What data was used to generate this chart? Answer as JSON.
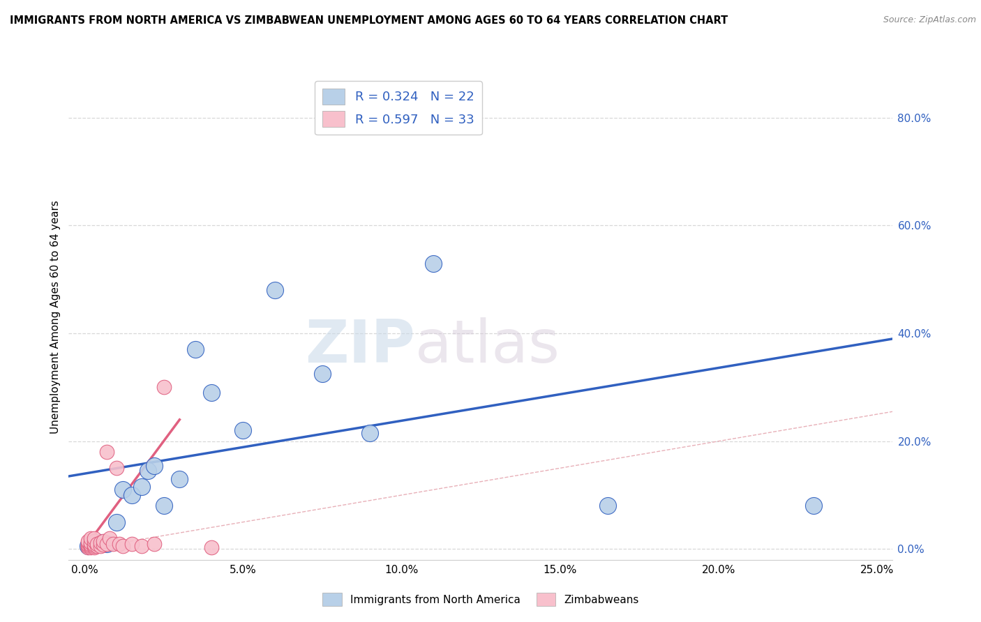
{
  "title": "IMMIGRANTS FROM NORTH AMERICA VS ZIMBABWEAN UNEMPLOYMENT AMONG AGES 60 TO 64 YEARS CORRELATION CHART",
  "source": "Source: ZipAtlas.com",
  "xlabel_ticks": [
    "0.0%",
    "5.0%",
    "10.0%",
    "15.0%",
    "20.0%",
    "25.0%"
  ],
  "xlabel_vals": [
    0.0,
    0.05,
    0.1,
    0.15,
    0.2,
    0.25
  ],
  "ylabel": "Unemployment Among Ages 60 to 64 years",
  "ylabel_ticks": [
    "80.0%",
    "60.0%",
    "40.0%",
    "20.0%",
    "0.0%"
  ],
  "ylabel_vals": [
    0.8,
    0.6,
    0.4,
    0.2,
    0.0
  ],
  "xlim": [
    -0.005,
    0.255
  ],
  "ylim": [
    -0.02,
    0.88
  ],
  "legend_label1": "Immigrants from North America",
  "legend_label2": "Zimbabweans",
  "blue_color": "#b8d0e8",
  "blue_line_color": "#3060c0",
  "pink_color": "#f8c0cc",
  "pink_line_color": "#e06080",
  "diag_color": "#d0a0a0",
  "blue_scatter_x": [
    0.001,
    0.002,
    0.003,
    0.005,
    0.007,
    0.01,
    0.012,
    0.015,
    0.018,
    0.02,
    0.022,
    0.025,
    0.03,
    0.035,
    0.04,
    0.05,
    0.06,
    0.075,
    0.09,
    0.11,
    0.165,
    0.23
  ],
  "blue_scatter_y": [
    0.005,
    0.01,
    0.008,
    0.012,
    0.01,
    0.05,
    0.11,
    0.1,
    0.115,
    0.145,
    0.155,
    0.08,
    0.13,
    0.37,
    0.29,
    0.22,
    0.48,
    0.325,
    0.215,
    0.53,
    0.08,
    0.08
  ],
  "pink_scatter_x": [
    0.001,
    0.001,
    0.001,
    0.001,
    0.001,
    0.002,
    0.002,
    0.002,
    0.002,
    0.002,
    0.003,
    0.003,
    0.003,
    0.003,
    0.003,
    0.004,
    0.004,
    0.005,
    0.005,
    0.006,
    0.006,
    0.007,
    0.007,
    0.008,
    0.009,
    0.01,
    0.011,
    0.012,
    0.015,
    0.018,
    0.022,
    0.025,
    0.04
  ],
  "pink_scatter_y": [
    0.003,
    0.005,
    0.008,
    0.012,
    0.015,
    0.003,
    0.005,
    0.008,
    0.012,
    0.02,
    0.003,
    0.005,
    0.008,
    0.015,
    0.02,
    0.005,
    0.01,
    0.005,
    0.012,
    0.008,
    0.015,
    0.01,
    0.18,
    0.02,
    0.01,
    0.15,
    0.01,
    0.005,
    0.01,
    0.005,
    0.01,
    0.3,
    0.003
  ],
  "blue_line_x0": -0.005,
  "blue_line_y0": 0.135,
  "blue_line_x1": 0.255,
  "blue_line_y1": 0.39,
  "pink_line_x0": 0.0,
  "pink_line_y0": 0.002,
  "pink_line_x1": 0.03,
  "pink_line_y1": 0.24,
  "watermark_zip": "ZIP",
  "watermark_atlas": "atlas",
  "background_color": "#ffffff",
  "grid_color": "#d8d8d8"
}
